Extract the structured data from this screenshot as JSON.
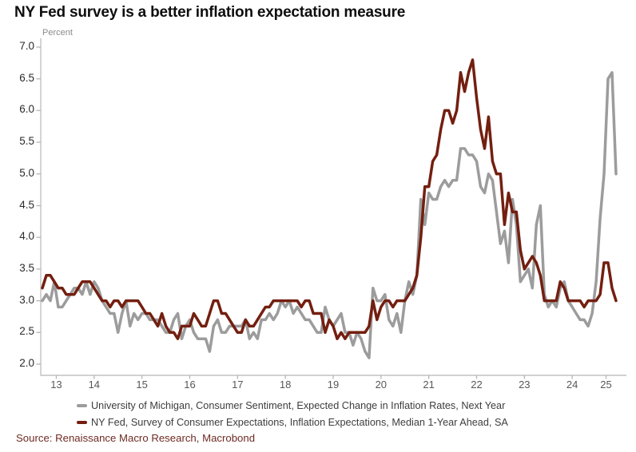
{
  "source_text": "Source: Renaissance Macro Research, Macrobond",
  "colors": {
    "umich_gray": "#9c9c9c",
    "nyfed_red": "#731f10",
    "axis_line": "#c2c2c2",
    "tick_mark": "#b5b5b5",
    "y_label_text": "#2b2b2b",
    "x_label_text": "#585858",
    "title_text": "#0e0e0e",
    "unit_text": "#8a8a8a",
    "legend_text": "#3d3d3d",
    "source_text_color": "#6e2b24",
    "background": "#ffffff"
  },
  "chart_data": {
    "type": "line",
    "title": "NY Fed survey is a better inflation expectation measure",
    "unit_label": "Percent",
    "grid": "off",
    "legend_position": "bottom",
    "x": {
      "start": "2013-06",
      "end": "2025-06",
      "frequency": "monthly",
      "tick_labels": [
        "13",
        "14",
        "15",
        "16",
        "17",
        "18",
        "19",
        "20",
        "21",
        "22",
        "23",
        "24",
        "25"
      ]
    },
    "y": {
      "min": 2.0,
      "max": 7.0,
      "step": 0.5,
      "tick_labels": [
        "2.0",
        "2.5",
        "3.0",
        "3.5",
        "4.0",
        "4.5",
        "5.0",
        "5.5",
        "6.0",
        "6.5",
        "7.0"
      ]
    },
    "series": [
      {
        "name": "University of Michigan, Consumer Sentiment, Expected Change in Inflation Rates, Next Year",
        "color": "#9c9c9c",
        "values": [
          3.0,
          3.1,
          3.0,
          3.3,
          2.9,
          2.9,
          3.0,
          3.1,
          3.2,
          3.2,
          3.1,
          3.3,
          3.1,
          3.3,
          3.2,
          3.0,
          2.9,
          2.8,
          2.8,
          2.5,
          2.8,
          3.0,
          2.6,
          2.8,
          2.7,
          2.8,
          2.8,
          2.7,
          2.7,
          2.7,
          2.6,
          2.5,
          2.5,
          2.7,
          2.8,
          2.4,
          2.6,
          2.7,
          2.5,
          2.4,
          2.4,
          2.4,
          2.2,
          2.6,
          2.7,
          2.5,
          2.5,
          2.6,
          2.6,
          2.6,
          2.6,
          2.7,
          2.4,
          2.5,
          2.4,
          2.7,
          2.7,
          2.8,
          2.7,
          2.8,
          3.0,
          2.9,
          3.0,
          2.8,
          2.9,
          2.8,
          2.7,
          2.7,
          2.6,
          2.5,
          2.5,
          2.9,
          2.7,
          2.6,
          2.7,
          2.8,
          2.5,
          2.5,
          2.3,
          2.5,
          2.4,
          2.2,
          2.1,
          3.2,
          3.0,
          3.0,
          3.1,
          2.7,
          2.6,
          2.8,
          2.5,
          3.0,
          3.3,
          3.1,
          3.4,
          4.6,
          4.2,
          4.7,
          4.6,
          4.6,
          4.8,
          4.9,
          4.8,
          4.9,
          4.9,
          5.4,
          5.4,
          5.3,
          5.3,
          5.2,
          4.8,
          4.7,
          5.0,
          4.9,
          4.4,
          3.9,
          4.1,
          3.6,
          4.6,
          4.2,
          3.3,
          3.4,
          3.5,
          3.2,
          4.2,
          4.5,
          3.1,
          2.9,
          3.0,
          2.9,
          3.2,
          3.3,
          3.0,
          2.9,
          2.8,
          2.7,
          2.7,
          2.6,
          2.8,
          3.3,
          4.3,
          5.0,
          6.5,
          6.6,
          5.0
        ]
      },
      {
        "name": "NY Fed, Survey of Consumer Expectations, Inflation Expectations, Median 1-Year Ahead, SA",
        "color": "#731f10",
        "values": [
          3.2,
          3.4,
          3.4,
          3.3,
          3.2,
          3.2,
          3.1,
          3.1,
          3.1,
          3.2,
          3.3,
          3.3,
          3.3,
          3.2,
          3.1,
          3.0,
          3.0,
          2.9,
          3.0,
          3.0,
          2.9,
          3.0,
          3.0,
          3.0,
          3.0,
          2.9,
          2.8,
          2.8,
          2.7,
          2.6,
          2.8,
          2.6,
          2.5,
          2.5,
          2.4,
          2.6,
          2.6,
          2.6,
          2.8,
          2.7,
          2.6,
          2.6,
          2.8,
          3.0,
          3.0,
          2.8,
          2.8,
          2.7,
          2.6,
          2.5,
          2.5,
          2.7,
          2.6,
          2.6,
          2.7,
          2.8,
          2.9,
          2.9,
          3.0,
          3.0,
          3.0,
          3.0,
          3.0,
          3.0,
          3.0,
          2.9,
          3.0,
          3.0,
          2.8,
          2.8,
          2.8,
          2.5,
          2.7,
          2.6,
          2.4,
          2.5,
          2.4,
          2.5,
          2.5,
          2.5,
          2.5,
          2.5,
          2.6,
          3.0,
          2.7,
          2.9,
          3.0,
          3.0,
          2.9,
          3.0,
          3.0,
          3.0,
          3.1,
          3.2,
          3.4,
          4.0,
          4.8,
          4.8,
          5.2,
          5.3,
          5.7,
          6.0,
          6.0,
          5.8,
          6.0,
          6.6,
          6.3,
          6.6,
          6.8,
          6.2,
          5.7,
          5.4,
          5.9,
          5.2,
          5.0,
          5.0,
          4.2,
          4.7,
          4.4,
          4.4,
          3.8,
          3.5,
          3.6,
          3.7,
          3.6,
          3.4,
          3.0,
          3.0,
          3.0,
          3.0,
          3.3,
          3.2,
          3.0,
          3.0,
          3.0,
          3.0,
          2.9,
          3.0,
          3.0,
          3.0,
          3.1,
          3.6,
          3.6,
          3.2,
          3.0
        ]
      }
    ]
  }
}
